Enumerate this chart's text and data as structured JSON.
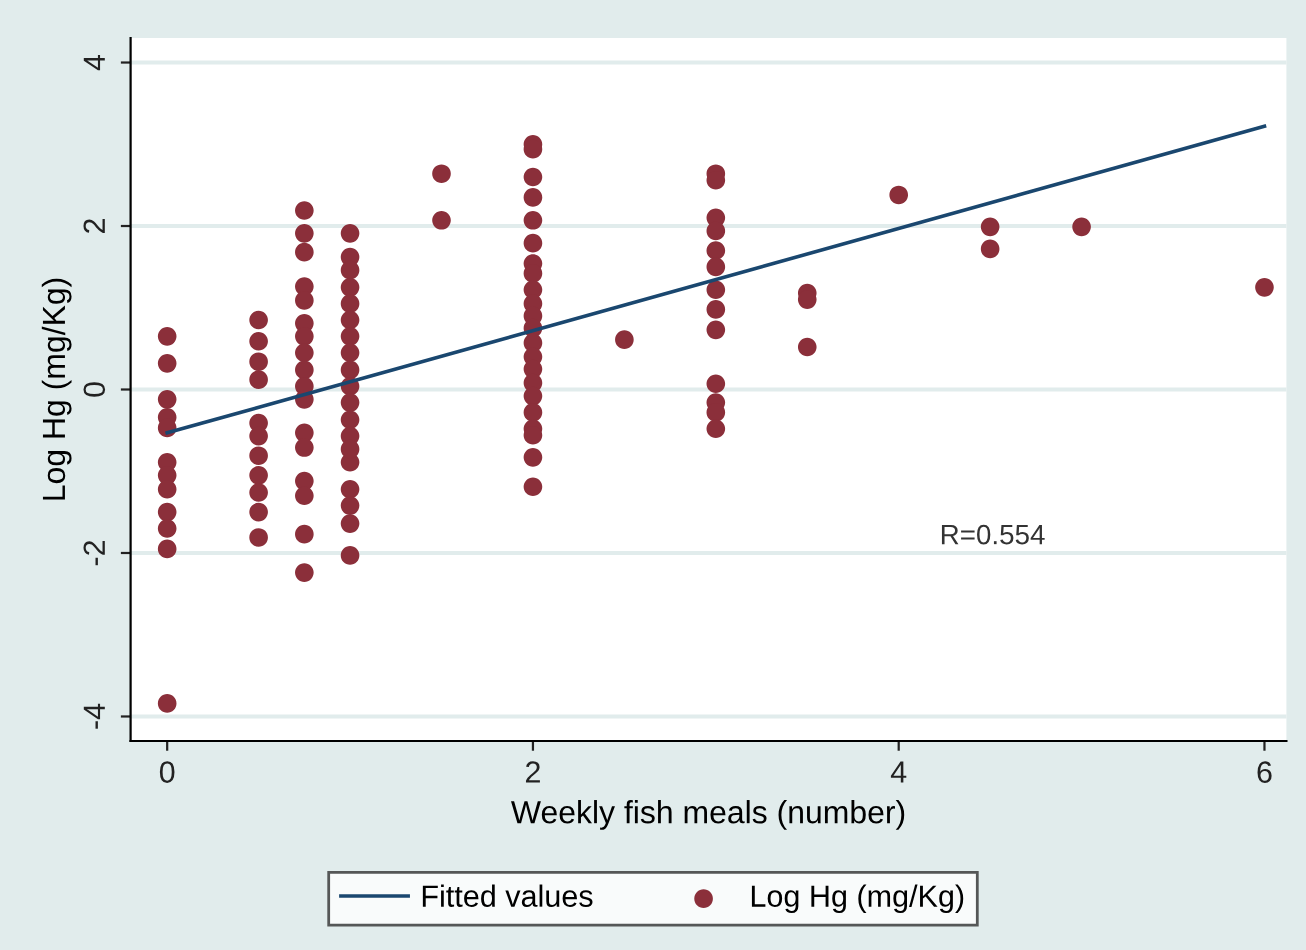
{
  "chart_data": {
    "type": "scatter",
    "xlabel": "Weekly fish meals (number)",
    "ylabel": "Log Hg (mg/Kg)",
    "xlim": [
      -0.2,
      6.12
    ],
    "ylim": [
      -4.3,
      4.3
    ],
    "xticks": [
      0,
      2,
      4,
      6
    ],
    "yticks": [
      -4,
      -2,
      0,
      2,
      4
    ],
    "grid": "y",
    "legend": "bottom",
    "annotations": [
      "R=0.554"
    ],
    "series": [
      {
        "name": "Fitted values",
        "type": "line",
        "color": "#1a476f",
        "line_style": "solid",
        "x": [
          0,
          6
        ],
        "values": [
          -0.53,
          3.22
        ]
      },
      {
        "name": "Log Hg (mg/Kg)",
        "marker": "circle",
        "color": "#8b2f3a",
        "x": [
          0,
          0,
          0,
          0,
          0,
          0,
          0,
          0,
          0,
          0,
          0,
          0,
          0.5,
          0.5,
          0.5,
          0.5,
          0.5,
          0.5,
          0.5,
          0.5,
          0.5,
          0.5,
          0.5,
          0.75,
          0.75,
          0.75,
          0.75,
          0.75,
          0.75,
          0.75,
          0.75,
          0.75,
          0.75,
          0.75,
          0.75,
          0.75,
          0.75,
          0.75,
          0.75,
          0.75,
          1,
          1,
          1,
          1,
          1,
          1,
          1,
          1,
          1,
          1,
          1,
          1,
          1,
          1,
          1,
          1,
          1,
          1,
          1,
          1.5,
          1.5,
          2,
          2,
          2,
          2,
          2,
          2,
          2,
          2,
          2,
          2,
          2,
          2,
          2,
          2,
          2,
          2,
          2,
          2,
          2,
          2,
          2,
          2,
          2.5,
          3,
          3,
          3,
          3,
          3,
          3,
          3,
          3,
          3,
          3,
          3,
          3,
          3,
          3.5,
          3.5,
          3.5,
          4,
          4.5,
          4.5,
          5,
          6
        ],
        "values": [
          0.65,
          0.32,
          -0.12,
          -0.34,
          -0.47,
          -0.89,
          -1.05,
          -1.22,
          -1.5,
          -1.7,
          -1.95,
          -3.84,
          0.85,
          0.59,
          0.34,
          0.12,
          -0.41,
          -0.57,
          -0.81,
          -1.05,
          -1.26,
          -1.5,
          -1.81,
          2.19,
          1.91,
          1.68,
          1.26,
          1.09,
          0.81,
          0.65,
          0.45,
          0.24,
          0.04,
          -0.12,
          -0.53,
          -0.71,
          -1.12,
          -1.3,
          -1.77,
          -2.24,
          1.91,
          1.62,
          1.46,
          1.25,
          1.05,
          0.85,
          0.65,
          0.45,
          0.24,
          0.04,
          -0.16,
          -0.37,
          -0.57,
          -0.89,
          -1.22,
          -1.42,
          -1.64,
          -2.03,
          -0.73,
          2.64,
          2.07,
          3.0,
          2.94,
          2.6,
          2.35,
          2.07,
          1.79,
          1.54,
          1.42,
          1.22,
          1.05,
          0.9,
          0.75,
          0.57,
          0.4,
          0.25,
          0.08,
          -0.08,
          -0.28,
          -0.48,
          -0.56,
          -0.83,
          -1.19,
          0.61,
          2.64,
          2.56,
          2.1,
          1.94,
          1.7,
          1.5,
          1.22,
          0.98,
          0.73,
          0.07,
          -0.16,
          -0.28,
          -0.48,
          1.18,
          1.1,
          0.52,
          2.38,
          1.99,
          1.72,
          1.99,
          1.25
        ]
      }
    ]
  }
}
